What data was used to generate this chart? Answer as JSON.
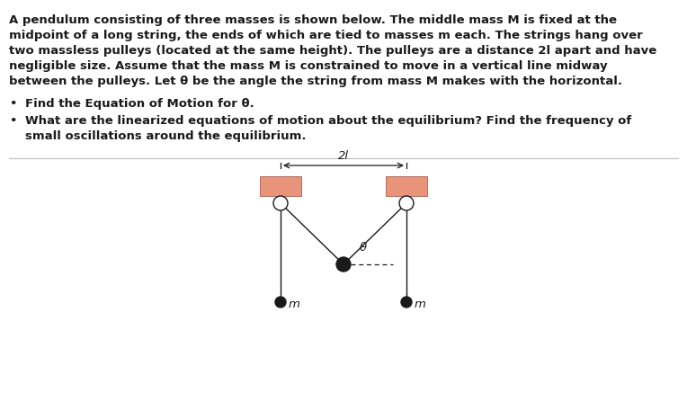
{
  "bg_color": "#ffffff",
  "text_color": "#1a1a1a",
  "para_line1": "A pendulum consisting of three masses is shown below. The middle mass M is fixed at the",
  "para_line2": "midpoint of a long string, the ends of which are tied to masses m each. The strings hang over",
  "para_line3": "two massless pulleys (located at the same height). The pulleys are a distance 2l apart and have",
  "para_line4": "negligible size. Assume that the mass M is constrained to move in a vertical line midway",
  "para_line5": "between the pulleys. Let θ be the angle the string from mass M makes with the horizontal.",
  "bullet1": "Find the Equation of Motion for θ.",
  "bullet2a": "What are the linearized equations of motion about the equilibrium? Find the frequency of",
  "bullet2b": "small oscillations around the equilibrium.",
  "pulley_color": "#e8937a",
  "pulley_border": "#b07060",
  "string_color": "#1a1a1a",
  "mass_color": "#1a1a1a",
  "separator_color": "#bbbbbb",
  "font_size_body": 9.5,
  "font_size_diagram": 9.5,
  "diagram_label_2l": "2l",
  "diagram_label_m": "m",
  "diagram_label_theta": "θ"
}
